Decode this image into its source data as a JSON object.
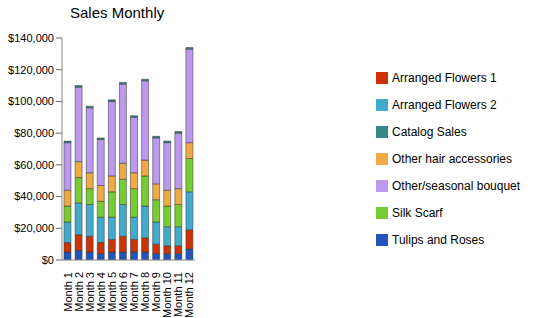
{
  "chart_data": {
    "type": "bar",
    "title": "Sales Monthly",
    "categories": [
      "Month 1",
      "Month 2",
      "Month 3",
      "Month 4",
      "Month 5",
      "Month 6",
      "Month 7",
      "Month 8",
      "Month 9",
      "Month 10",
      "Month 11",
      "Month 12"
    ],
    "series": [
      {
        "name": "Tulips and Roses",
        "color": "#2255bb",
        "values": [
          5000,
          6000,
          5000,
          4000,
          5000,
          5000,
          5000,
          5000,
          4000,
          4000,
          4000,
          7000
        ]
      },
      {
        "name": "Arranged Flowers 1",
        "color": "#cc3300",
        "values": [
          6000,
          10000,
          10000,
          7000,
          8000,
          10000,
          8000,
          9000,
          6000,
          5000,
          5000,
          12000
        ]
      },
      {
        "name": "Arranged Flowers 2",
        "color": "#44aacc",
        "values": [
          13000,
          20000,
          20000,
          16000,
          14000,
          20000,
          14000,
          20000,
          14000,
          12000,
          12000,
          24000
        ]
      },
      {
        "name": "Silk Scarf",
        "color": "#77cc33",
        "values": [
          10000,
          16000,
          10000,
          10000,
          16000,
          16000,
          18000,
          19000,
          14000,
          13000,
          14000,
          21000
        ]
      },
      {
        "name": "Other hair accessories",
        "color": "#eeaa44",
        "values": [
          10000,
          10000,
          10000,
          10000,
          10000,
          10000,
          10000,
          10000,
          10000,
          10000,
          10000,
          10000
        ]
      },
      {
        "name": "Other/seasonal bouquet",
        "color": "#bb99ee",
        "values": [
          30000,
          47000,
          41000,
          29000,
          47000,
          50000,
          35000,
          50000,
          29000,
          30000,
          35000,
          59000
        ]
      },
      {
        "name": "Catalog Sales",
        "color": "#338888",
        "values": [
          1000,
          1000,
          1000,
          1000,
          1000,
          1000,
          1000,
          1000,
          1000,
          1000,
          1000,
          1000
        ]
      }
    ],
    "ylim": [
      0,
      140000
    ],
    "yticks": [
      {
        "value": 0,
        "label": "$0"
      },
      {
        "value": 20000,
        "label": "$20,000"
      },
      {
        "value": 40000,
        "label": "$40,000"
      },
      {
        "value": 60000,
        "label": "$60,000"
      },
      {
        "value": 80000,
        "label": "$80,000"
      },
      {
        "value": 100000,
        "label": "$100,000"
      },
      {
        "value": 120000,
        "label": "$120,000"
      },
      {
        "value": 140000,
        "label": "$140,000"
      }
    ],
    "stacked": true,
    "legend": "right",
    "grid": false
  }
}
